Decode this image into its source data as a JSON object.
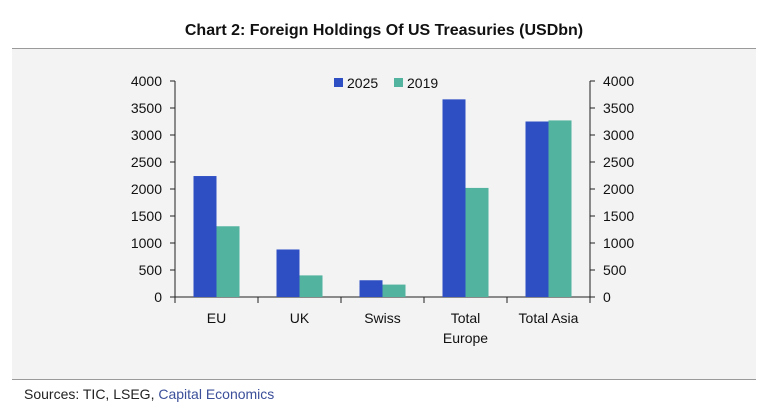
{
  "header": {
    "title": "Chart 2: Foreign Holdings Of US Treasuries (USDbn)"
  },
  "footer": {
    "sources_prefix": "Sources: TIC, LSEG, ",
    "sources_link": "Capital Economics"
  },
  "colors": {
    "series_2025": "#2e4fc4",
    "series_2019": "#52b39f",
    "background": "#f3f3f4"
  },
  "chart_data": {
    "type": "bar",
    "categories": [
      [
        "EU"
      ],
      [
        "UK"
      ],
      [
        "Swiss"
      ],
      [
        "Total",
        "Europe"
      ],
      [
        "Total Asia"
      ]
    ],
    "series": [
      {
        "name": "2025",
        "values": [
          2240,
          880,
          310,
          3660,
          3250
        ]
      },
      {
        "name": "2019",
        "values": [
          1310,
          400,
          230,
          2020,
          3270
        ]
      }
    ],
    "ylim": [
      0,
      4000
    ],
    "yticks": [
      0,
      500,
      1000,
      1500,
      2000,
      2500,
      3000,
      3500,
      4000
    ],
    "secondary_axis": true,
    "legend": "top-center",
    "grid": false,
    "title": "Chart 2: Foreign Holdings Of US Treasuries (USDbn)",
    "xlabel": "",
    "ylabel": ""
  }
}
